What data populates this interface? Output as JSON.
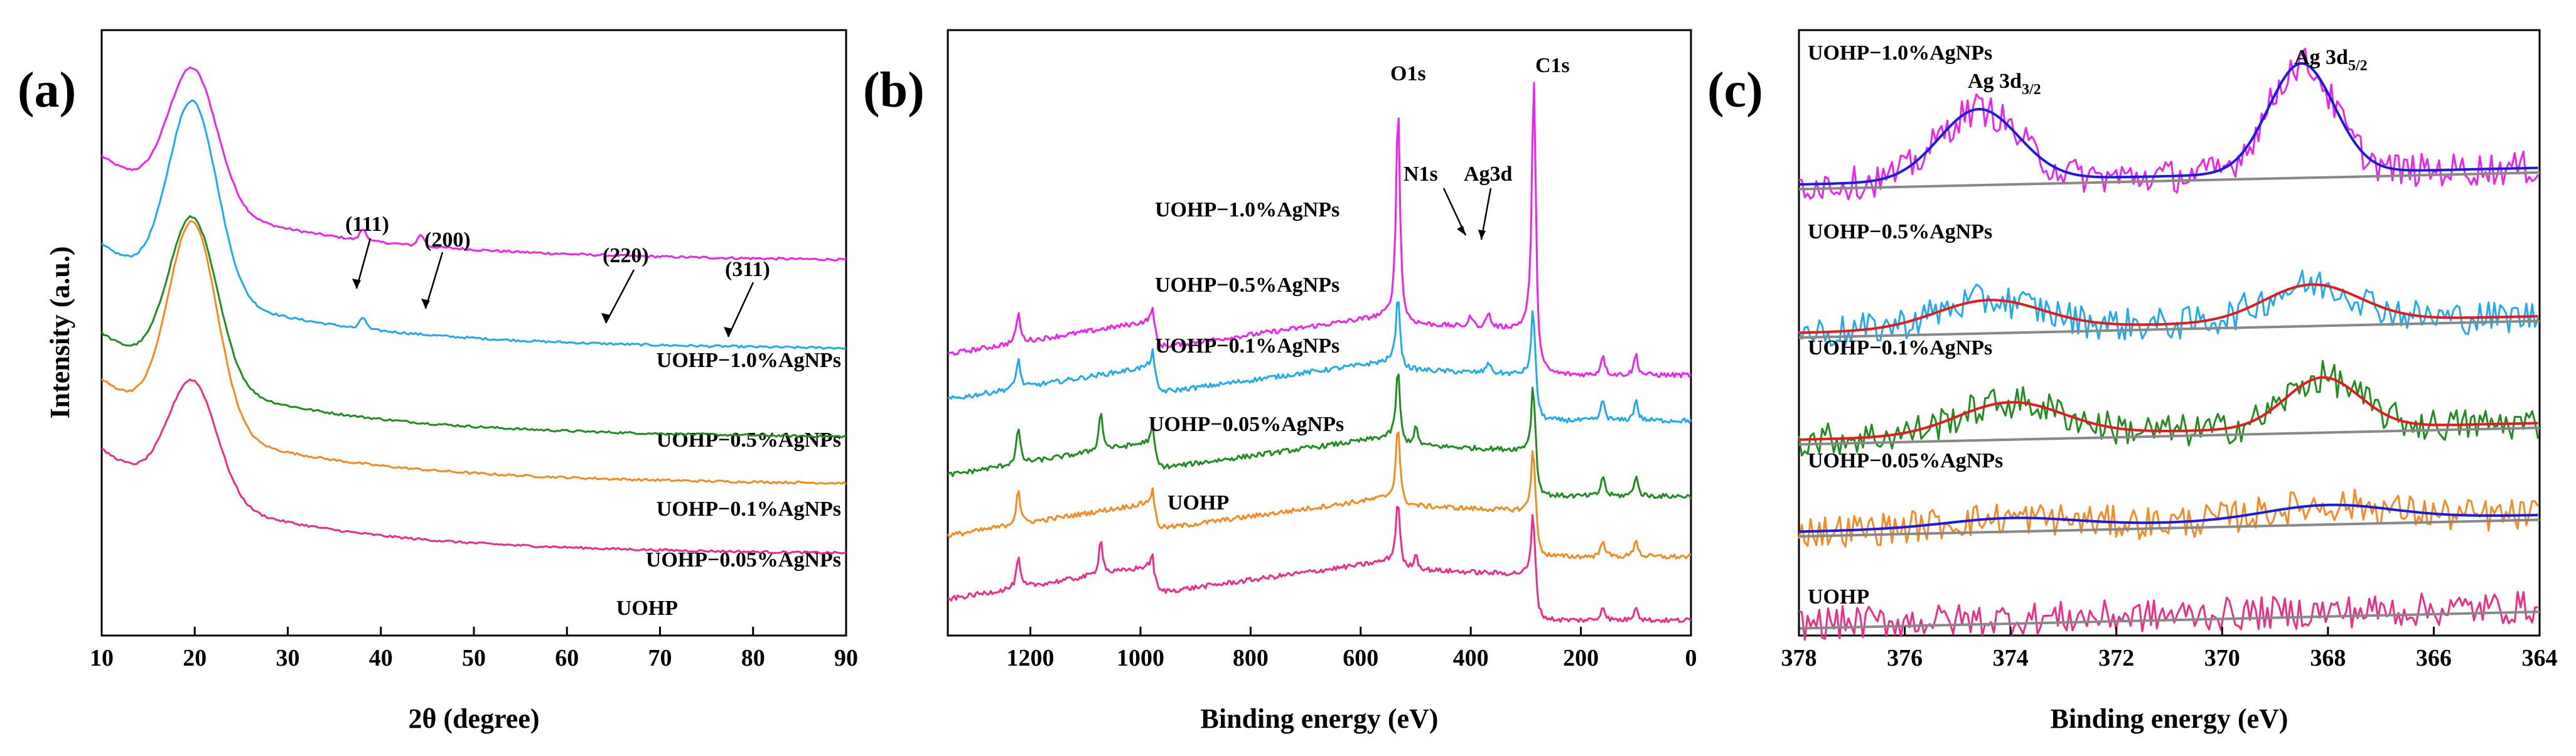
{
  "colors": {
    "UOHP-1.0%AgNPs": "#ee22ee",
    "UOHP-0.5%AgNPs": "#1eaaee",
    "UOHP-0.1%AgNPs": "#1e8c1e",
    "UOHP-0.05%AgNPs": "#f58a1e",
    "UOHP": "#ee2a8a",
    "fit_blue": "#1a1ae6",
    "fit_red": "#e61a1a",
    "baseline": "#888888"
  },
  "chart_data": [
    {
      "panel": "(a)",
      "type": "line",
      "xlabel": "2θ (degree)",
      "ylabel": "Intensity (a.u.)",
      "xlim": [
        10,
        90
      ],
      "xticks": [
        10,
        20,
        30,
        40,
        50,
        60,
        70,
        80,
        90
      ],
      "series": [
        {
          "name": "UOHP−1.0%AgNPs",
          "offset": 4.0,
          "peak_height": 1.45,
          "peaks": [
            38.1,
            44.3
          ]
        },
        {
          "name": "UOHP−0.5%AgNPs",
          "offset": 3.05,
          "peak_height": 2.05,
          "peaks": [
            38.1
          ]
        },
        {
          "name": "UOHP−0.1%AgNPs",
          "offset": 2.1,
          "peak_height": 1.75,
          "peaks": []
        },
        {
          "name": "UOHP−0.05%AgNPs",
          "offset": 1.6,
          "peak_height": 2.2,
          "peaks": []
        },
        {
          "name": "UOHP",
          "offset": 0.85,
          "peak_height": 1.25,
          "peaks": []
        }
      ],
      "annotations": [
        {
          "text": "(111)",
          "x": 38.1
        },
        {
          "text": "(200)",
          "x": 44.3
        },
        {
          "text": "(220)",
          "x": 64.5
        },
        {
          "text": "(311)",
          "x": 77.5
        }
      ]
    },
    {
      "panel": "(b)",
      "type": "line",
      "xlabel": "Binding energy (eV)",
      "ylabel": "",
      "xlim": [
        1350,
        0
      ],
      "xticks": [
        1200,
        1000,
        800,
        600,
        400,
        200,
        0
      ],
      "series": [
        {
          "name": "UOHP−1.0%AgNPs",
          "offset": 4.65,
          "peaks": [
            {
              "x": 1222,
              "h": 0.5
            },
            {
              "x": 975,
              "h": 0.4
            },
            {
              "x": 532,
              "h": 3.6
            },
            {
              "x": 400,
              "h": 0.18
            },
            {
              "x": 368,
              "h": 0.25
            },
            {
              "x": 285,
              "h": 4.8
            },
            {
              "x": 160,
              "h": 0.35
            },
            {
              "x": 100,
              "h": 0.35
            }
          ]
        },
        {
          "name": "UOHP−0.5%AgNPs",
          "offset": 3.9,
          "peaks": [
            {
              "x": 1222,
              "h": 0.5
            },
            {
              "x": 975,
              "h": 0.45
            },
            {
              "x": 532,
              "h": 1.2
            },
            {
              "x": 368,
              "h": 0.2
            },
            {
              "x": 285,
              "h": 1.6
            },
            {
              "x": 160,
              "h": 0.35
            },
            {
              "x": 100,
              "h": 0.35
            }
          ]
        },
        {
          "name": "UOHP−0.1%AgNPs",
          "offset": 2.65,
          "peaks": [
            {
              "x": 1222,
              "h": 0.6
            },
            {
              "x": 1072,
              "h": 0.65
            },
            {
              "x": 975,
              "h": 0.45
            },
            {
              "x": 532,
              "h": 1.2
            },
            {
              "x": 500,
              "h": 0.3
            },
            {
              "x": 285,
              "h": 1.6
            },
            {
              "x": 160,
              "h": 0.35
            },
            {
              "x": 100,
              "h": 0.35
            }
          ]
        },
        {
          "name": "UOHP−0.05%AgNPs",
          "offset": 1.65,
          "peaks": [
            {
              "x": 1222,
              "h": 0.6
            },
            {
              "x": 975,
              "h": 0.4
            },
            {
              "x": 532,
              "h": 1.3
            },
            {
              "x": 285,
              "h": 1.6
            },
            {
              "x": 160,
              "h": 0.3
            },
            {
              "x": 100,
              "h": 0.3
            }
          ]
        },
        {
          "name": "UOHP",
          "offset": 0.6,
          "peaks": [
            {
              "x": 1222,
              "h": 0.5
            },
            {
              "x": 1072,
              "h": 0.6
            },
            {
              "x": 975,
              "h": 0.35
            },
            {
              "x": 532,
              "h": 1.1
            },
            {
              "x": 500,
              "h": 0.25
            },
            {
              "x": 285,
              "h": 1.5
            },
            {
              "x": 160,
              "h": 0.25
            },
            {
              "x": 100,
              "h": 0.25
            }
          ]
        }
      ],
      "annotations": [
        {
          "text": "O1s",
          "x": 532
        },
        {
          "text": "C1s",
          "x": 285
        },
        {
          "text": "N1s",
          "x": 400
        },
        {
          "text": "Ag3d",
          "x": 368
        }
      ]
    },
    {
      "panel": "(c)",
      "type": "line",
      "xlabel": "Binding energy (eV)",
      "ylabel": "",
      "xlim": [
        378,
        364
      ],
      "xticks": [
        378,
        376,
        374,
        372,
        370,
        368,
        366,
        364
      ],
      "series": [
        {
          "name": "UOHP−1.0%AgNPs",
          "baseline_y": 7.6,
          "peaks": [
            {
              "x": 374.6,
              "h": 1.2,
              "w": 0.75
            },
            {
              "x": 368.5,
              "h": 1.85,
              "w": 0.62
            }
          ],
          "fit": "fit_blue"
        },
        {
          "name": "UOHP−0.5%AgNPs",
          "baseline_y": 5.1,
          "peaks": [
            {
              "x": 374.4,
              "h": 0.48,
              "w": 1.0
            },
            {
              "x": 368.3,
              "h": 0.62,
              "w": 0.9
            }
          ],
          "fit": "fit_red"
        },
        {
          "name": "UOHP−0.1%AgNPs",
          "baseline_y": 3.3,
          "peaks": [
            {
              "x": 374.0,
              "h": 0.55,
              "w": 1.0
            },
            {
              "x": 368.1,
              "h": 0.85,
              "w": 0.7
            }
          ],
          "fit": "fit_red"
        },
        {
          "name": "UOHP−0.05%AgNPs",
          "baseline_y": 1.75,
          "peaks": [
            {
              "x": 374.0,
              "h": 0.15,
              "w": 1.2
            },
            {
              "x": 368.0,
              "h": 0.25,
              "w": 1.2
            }
          ],
          "fit": "fit_blue"
        },
        {
          "name": "UOHP",
          "baseline_y": 0.2,
          "peaks": [],
          "fit": ""
        }
      ],
      "annotations": [
        {
          "text": "Ag 3d",
          "sub": "3/2",
          "x": 374.6
        },
        {
          "text": "Ag 3d",
          "sub": "5/2",
          "x": 368.5
        }
      ]
    }
  ]
}
